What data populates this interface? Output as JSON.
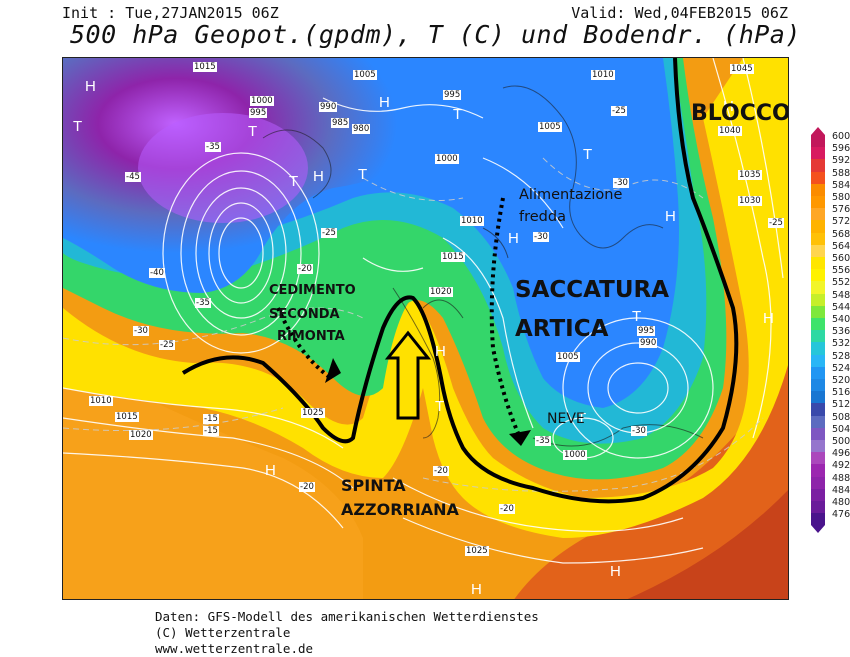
{
  "header": {
    "init": "Init : Tue,27JAN2015 06Z",
    "valid": "Valid: Wed,04FEB2015 06Z",
    "title": "500 hPa Geopot.(gpdm), T (C) und Bodendr. (hPa)"
  },
  "annotations": {
    "blocco": "BLOCCO",
    "alimentazione_line1": "Alimentazione",
    "alimentazione_line2": "fredda",
    "saccatura_line1": "SACCATURA",
    "saccatura_line2": "ARTICA",
    "cedimento_line1": "CEDIMENTO",
    "cedimento_line2": "SECONDA",
    "cedimento_line3": "RIMONTA",
    "spinta_line1": "SPINTA",
    "spinta_line2": "AZZORRIANA",
    "neve": "NEVE"
  },
  "pressure_markers": {
    "highs": [
      "H",
      "H",
      "H",
      "H",
      "H",
      "H",
      "H",
      "H",
      "H",
      "H",
      "H"
    ],
    "lows": [
      "T",
      "T",
      "T",
      "T",
      "T",
      "T",
      "T",
      "T",
      "T"
    ]
  },
  "isobar_labels": [
    "1015",
    "1005",
    "1000",
    "995",
    "990",
    "985",
    "980",
    "1010",
    "1015",
    "1020",
    "1025",
    "1035",
    "1030",
    "1040",
    "1045",
    "1010",
    "1005",
    "1000",
    "995",
    "1010",
    "1015",
    "1020",
    "1025",
    "1005",
    "995",
    "990",
    "1000"
  ],
  "temperature_labels": [
    "-35",
    "-40",
    "-45",
    "-35",
    "-25",
    "-30",
    "-25",
    "-20",
    "-15",
    "-15",
    "-20",
    "-20",
    "-30",
    "-35",
    "-30",
    "-25",
    "-20",
    "-25",
    "-30"
  ],
  "colors": {
    "deep_low": "#7b1fa2",
    "cold": "#2979ff",
    "mid": "#2ed573",
    "warm_yellow": "#fff200",
    "warm_orange": "#f39c12",
    "hot": "#d35400"
  },
  "legend": {
    "ticks": [
      "600",
      "596",
      "592",
      "588",
      "584",
      "580",
      "576",
      "572",
      "568",
      "564",
      "560",
      "556",
      "552",
      "548",
      "544",
      "540",
      "536",
      "532",
      "528",
      "524",
      "520",
      "516",
      "512",
      "508",
      "504",
      "500",
      "496",
      "492",
      "488",
      "484",
      "480",
      "476"
    ],
    "colors": [
      "#c2185b",
      "#d81b60",
      "#e53935",
      "#f4511e",
      "#fb8c00",
      "#ff9800",
      "#ffa726",
      "#ffb300",
      "#ffc107",
      "#ffd54f",
      "#ffe600",
      "#fff200",
      "#f2f52a",
      "#c6ef2a",
      "#7ee83b",
      "#3ee36b",
      "#2ed9a3",
      "#26c6da",
      "#29b6f6",
      "#2196f3",
      "#1e88e5",
      "#1976d2",
      "#3949ab",
      "#5c6bc0",
      "#7e57c2",
      "#9575cd",
      "#ab47bc",
      "#9c27b0",
      "#8e24aa",
      "#7b1fa2",
      "#6a1b9a",
      "#4a148c"
    ]
  },
  "footer": {
    "line1": "Daten: GFS-Modell des amerikanischen Wetterdienstes",
    "line2": "(C) Wetterzentrale",
    "line3": "www.wetterzentrale.de"
  }
}
